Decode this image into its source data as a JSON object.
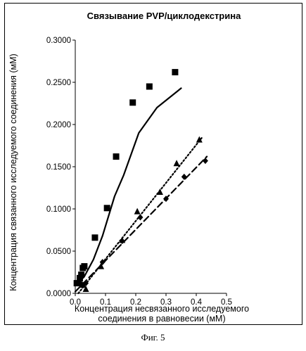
{
  "chart_data": {
    "type": "scatter",
    "title": "Связывание PVP/циклодекстрина",
    "xlabel_lines": [
      "Концентрация несвязанного исследуемого",
      "соединения в равновесии (мМ)"
    ],
    "ylabel": "Концентрация связанного исследуемого соединения (мМ)",
    "xlim": [
      0,
      0.5
    ],
    "ylim": [
      0,
      0.3
    ],
    "xticks": [
      "0.0",
      "0.1",
      "0.2",
      "0.3",
      "0.4",
      "0.5"
    ],
    "yticks": [
      "0.0000",
      "0.0500",
      "0.1000",
      "0.1500",
      "0.2000",
      "0.2500",
      "0.3000"
    ],
    "grid": false,
    "series": [
      {
        "marker": "square",
        "x": [
          0.005,
          0.015,
          0.02,
          0.025,
          0.03,
          0.065,
          0.105,
          0.135,
          0.19,
          0.245,
          0.33
        ],
        "y": [
          0.012,
          0.018,
          0.022,
          0.03,
          0.032,
          0.066,
          0.101,
          0.162,
          0.226,
          0.245,
          0.262
        ],
        "fit_x": [
          0.01,
          0.03,
          0.06,
          0.09,
          0.13,
          0.16,
          0.21,
          0.27,
          0.35
        ],
        "fit_y": [
          0.012,
          0.02,
          0.04,
          0.068,
          0.115,
          0.14,
          0.19,
          0.22,
          0.243
        ],
        "fit_style": "solid"
      },
      {
        "marker": "triangle",
        "x": [
          0.01,
          0.015,
          0.025,
          0.035,
          0.085,
          0.155,
          0.205,
          0.28,
          0.335,
          0.41
        ],
        "y": [
          0.012,
          0.015,
          0.01,
          0.005,
          0.032,
          0.063,
          0.097,
          0.12,
          0.154,
          0.182
        ],
        "fit_x": [
          0.01,
          0.42
        ],
        "fit_y": [
          0.0,
          0.185
        ],
        "fit_style": "dotted"
      },
      {
        "marker": "diamond",
        "x": [
          0.01,
          0.02,
          0.035,
          0.09,
          0.155,
          0.215,
          0.3,
          0.36,
          0.43
        ],
        "y": [
          0.012,
          0.01,
          0.012,
          0.037,
          0.062,
          0.09,
          0.112,
          0.138,
          0.157
        ],
        "fit_x": [
          0.0,
          0.435
        ],
        "fit_y": [
          0.002,
          0.162
        ],
        "fit_style": "dashed"
      }
    ]
  },
  "caption": "Фиг. 5"
}
